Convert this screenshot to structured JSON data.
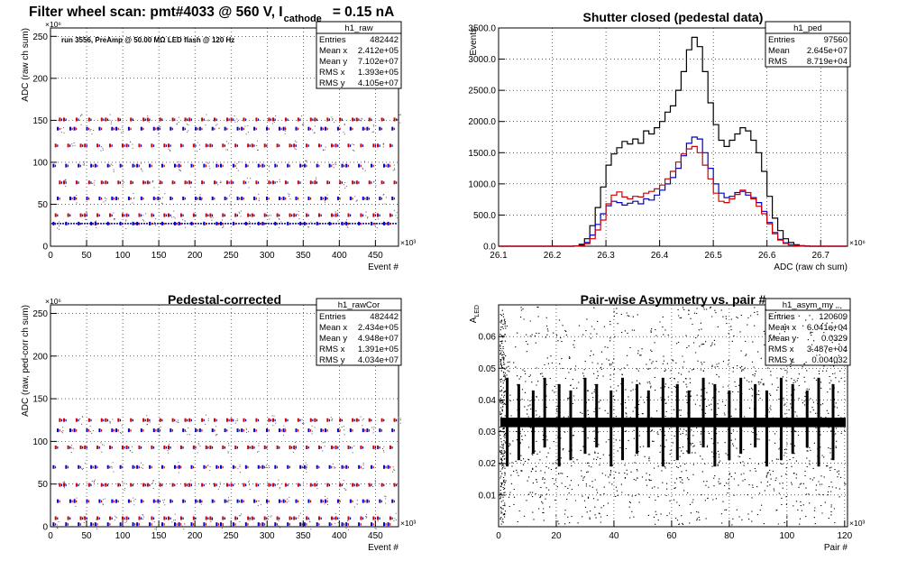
{
  "page": {
    "main_title_prefix": "Filter wheel scan: pmt#4033 @   560 V, I",
    "main_title_sub": "cathode",
    "main_title_suffix": "= 0.15 nA"
  },
  "chart_data": [
    {
      "id": "raw",
      "type": "scatter",
      "title": "",
      "xlabel": "Event #",
      "ylabel": "ADC (raw ch sum)",
      "x_exponent": "×10³",
      "y_exponent": "×10⁶",
      "xlim": [
        0,
        482
      ],
      "ylim": [
        0,
        260
      ],
      "xticks": [
        0,
        50,
        100,
        150,
        200,
        250,
        300,
        350,
        400,
        450
      ],
      "yticks": [
        0,
        50,
        100,
        150,
        200,
        250
      ],
      "grid": true,
      "annotation": "run 3556, PreAmp @ 50.00 MΩ LED flash @  120 Hz",
      "stats": {
        "name": "h1_raw",
        "rows": [
          [
            "Entries",
            "482442"
          ],
          [
            "Mean x",
            "2.412e+05"
          ],
          [
            "Mean y",
            "7.102e+07"
          ],
          [
            "RMS x",
            "1.393e+05"
          ],
          [
            "RMS y",
            "4.105e+07"
          ]
        ]
      },
      "levels": [
        27,
        37,
        57,
        76,
        96,
        120,
        140,
        151
      ],
      "baseline": 27,
      "colors": {
        "blue": "#0000cc",
        "red": "#cc0000"
      }
    },
    {
      "id": "ped",
      "type": "line",
      "title": "Shutter closed (pedestal data)",
      "xlabel": "ADC (raw ch sum)",
      "ylabel": "Events",
      "x_exponent": "×10⁶",
      "xlim": [
        26.1,
        26.75
      ],
      "ylim": [
        0,
        3500
      ],
      "xticks": [
        26.1,
        26.2,
        26.3,
        26.4,
        26.5,
        26.6,
        26.7
      ],
      "yticks": [
        0,
        500,
        1000,
        1500,
        2000,
        2500,
        3000,
        3500
      ],
      "grid": true,
      "stats": {
        "name": "h1_ped",
        "rows": [
          [
            "Entries",
            "97560"
          ],
          [
            "Mean",
            "2.645e+07"
          ],
          [
            "RMS",
            "8.719e+04"
          ]
        ]
      },
      "x": [
        26.1,
        26.11,
        26.12,
        26.13,
        26.14,
        26.15,
        26.16,
        26.17,
        26.18,
        26.19,
        26.2,
        26.21,
        26.22,
        26.23,
        26.24,
        26.25,
        26.26,
        26.27,
        26.28,
        26.29,
        26.3,
        26.31,
        26.32,
        26.33,
        26.34,
        26.35,
        26.36,
        26.37,
        26.38,
        26.39,
        26.4,
        26.41,
        26.42,
        26.43,
        26.44,
        26.45,
        26.46,
        26.47,
        26.48,
        26.49,
        26.5,
        26.51,
        26.52,
        26.53,
        26.54,
        26.55,
        26.56,
        26.57,
        26.58,
        26.59,
        26.6,
        26.61,
        26.62,
        26.63,
        26.64,
        26.65,
        26.66,
        26.67,
        26.68,
        26.69,
        26.7,
        26.71,
        26.72,
        26.73,
        26.74
      ],
      "series": [
        {
          "color": "#000000",
          "values": [
            0,
            0,
            0,
            0,
            0,
            0,
            0,
            0,
            0,
            0,
            0,
            0,
            0,
            0,
            5,
            30,
            120,
            330,
            620,
            950,
            1300,
            1480,
            1580,
            1680,
            1640,
            1720,
            1650,
            1850,
            1800,
            1900,
            2000,
            2150,
            2250,
            2500,
            2800,
            3150,
            3350,
            3200,
            2800,
            2300,
            1950,
            1700,
            1600,
            1700,
            1800,
            1900,
            1850,
            1700,
            1500,
            1200,
            800,
            450,
            250,
            120,
            60,
            25,
            10,
            5,
            0,
            0,
            0,
            0,
            0,
            0,
            0
          ]
        },
        {
          "color": "#0000cc",
          "values": [
            0,
            0,
            0,
            0,
            0,
            0,
            0,
            0,
            0,
            0,
            0,
            0,
            0,
            0,
            3,
            15,
            60,
            180,
            350,
            520,
            650,
            720,
            700,
            660,
            690,
            720,
            680,
            760,
            740,
            820,
            900,
            1000,
            1100,
            1250,
            1450,
            1650,
            1750,
            1720,
            1500,
            1250,
            1000,
            850,
            780,
            800,
            860,
            880,
            820,
            780,
            700,
            560,
            380,
            220,
            110,
            55,
            25,
            10,
            5,
            0,
            0,
            0,
            0,
            0,
            0,
            0,
            0
          ]
        },
        {
          "color": "#cc0000",
          "values": [
            0,
            0,
            0,
            0,
            0,
            0,
            0,
            0,
            0,
            0,
            0,
            0,
            0,
            0,
            2,
            10,
            40,
            120,
            260,
            420,
            680,
            820,
            870,
            790,
            760,
            800,
            790,
            850,
            880,
            920,
            980,
            1080,
            1200,
            1350,
            1480,
            1560,
            1600,
            1500,
            1300,
            1080,
            850,
            720,
            700,
            760,
            830,
            900,
            860,
            760,
            640,
            520,
            360,
            200,
            100,
            45,
            20,
            8,
            3,
            0,
            0,
            0,
            0,
            0,
            0,
            0,
            0
          ]
        }
      ]
    },
    {
      "id": "rawCor",
      "type": "scatter",
      "title": "Pedestal-corrected",
      "xlabel": "Event #",
      "ylabel": "ADC (raw, ped-corr ch sum)",
      "x_exponent": "×10³",
      "y_exponent": "×10⁶",
      "xlim": [
        0,
        482
      ],
      "ylim": [
        0,
        260
      ],
      "xticks": [
        0,
        50,
        100,
        150,
        200,
        250,
        300,
        350,
        400,
        450
      ],
      "yticks": [
        0,
        50,
        100,
        150,
        200,
        250
      ],
      "grid": true,
      "stats": {
        "name": "h1_rawCor",
        "rows": [
          [
            "Entries",
            "482442"
          ],
          [
            "Mean x",
            "2.434e+05"
          ],
          [
            "Mean y",
            "4.948e+07"
          ],
          [
            "RMS x",
            "1.391e+05"
          ],
          [
            "RMS y",
            "4.034e+07"
          ]
        ]
      },
      "levels": [
        3,
        10,
        30,
        49,
        70,
        93,
        113,
        125
      ],
      "baseline": 0,
      "colors": {
        "blue": "#0000cc",
        "red": "#cc0000"
      }
    },
    {
      "id": "asym",
      "type": "scatter",
      "title": "Pair-wise Asymmetry vs. pair #",
      "xlabel": "Pair #",
      "ylabel": "A",
      "ylabel_sub": "LED",
      "x_exponent": "×10³",
      "xlim": [
        0,
        121
      ],
      "ylim": [
        0,
        0.07
      ],
      "xticks": [
        0,
        20,
        40,
        60,
        80,
        100,
        120
      ],
      "yticks": [
        0.01,
        0.02,
        0.03,
        0.04,
        0.05,
        0.06
      ],
      "grid": true,
      "stats": {
        "name": "h1_asym_my",
        "rows": [
          [
            "Entries",
            "120609"
          ],
          [
            "Mean x",
            "6.041e+04"
          ],
          [
            "Mean y",
            "0.0329"
          ],
          [
            "RMS x",
            "3.487e+04"
          ],
          [
            "RMS y",
            "0.004032"
          ]
        ]
      },
      "band_center": 0.0329,
      "band_halfwidth": 0.0015,
      "spike_x": [
        3,
        7,
        12,
        16,
        21,
        25,
        30,
        34,
        39,
        43,
        48,
        52,
        57,
        62,
        66,
        71,
        75,
        80,
        84,
        89,
        93,
        98,
        102,
        107,
        111,
        116
      ]
    }
  ]
}
